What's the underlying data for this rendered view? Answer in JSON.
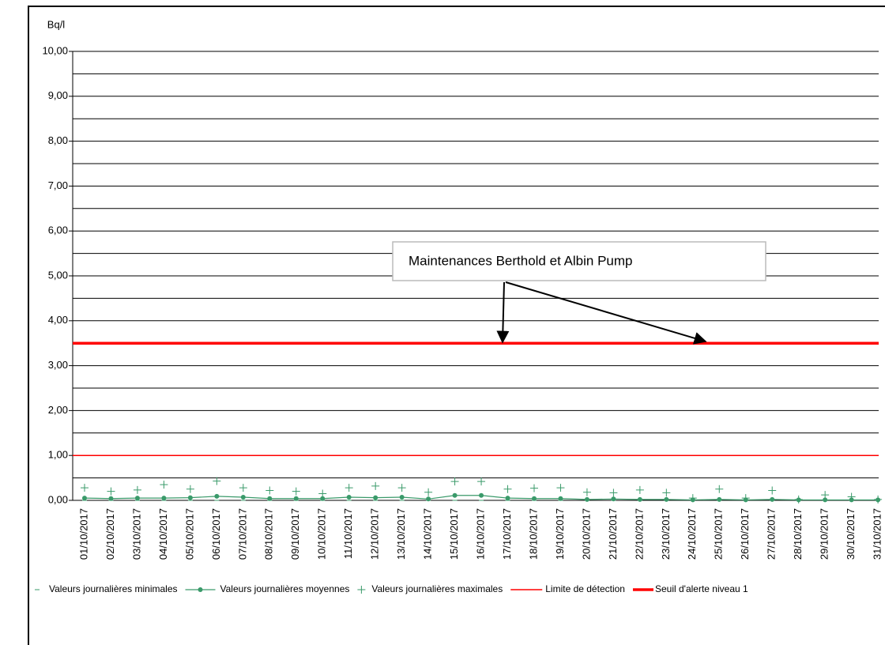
{
  "chart_data": {
    "type": "line",
    "y_label": "Bq/l",
    "annotation": "Maintenances Berthold et Albin Pump",
    "categories": [
      "01/10/2017",
      "02/10/2017",
      "03/10/2017",
      "04/10/2017",
      "05/10/2017",
      "06/10/2017",
      "07/10/2017",
      "08/10/2017",
      "09/10/2017",
      "10/10/2017",
      "11/10/2017",
      "12/10/2017",
      "13/10/2017",
      "14/10/2017",
      "15/10/2017",
      "16/10/2017",
      "17/10/2017",
      "18/10/2017",
      "19/10/2017",
      "20/10/2017",
      "21/10/2017",
      "22/10/2017",
      "23/10/2017",
      "24/10/2017",
      "25/10/2017",
      "26/10/2017",
      "27/10/2017",
      "28/10/2017",
      "29/10/2017",
      "30/10/2017",
      "31/10/2017"
    ],
    "series": [
      {
        "name": "Valeurs journalières minimales",
        "color": "#3a9a6a",
        "style": "dash",
        "values": [
          0,
          0,
          0,
          0,
          0,
          0,
          0,
          0,
          0,
          0,
          0,
          0,
          0,
          0,
          0,
          0,
          0,
          0,
          0,
          0,
          0,
          0,
          0,
          0,
          0,
          0,
          0,
          0,
          0,
          0,
          0
        ]
      },
      {
        "name": "Valeurs journalières moyennes",
        "color": "#3a9a6a",
        "style": "line-dot",
        "values": [
          0.05,
          0.04,
          0.05,
          0.05,
          0.06,
          0.09,
          0.07,
          0.04,
          0.04,
          0.04,
          0.07,
          0.06,
          0.07,
          0.03,
          0.11,
          0.11,
          0.05,
          0.04,
          0.04,
          0.02,
          0.03,
          0.02,
          0.02,
          0.01,
          0.02,
          0.01,
          0.02,
          0.01,
          0.01,
          0.01,
          0.01
        ]
      },
      {
        "name": "Valeurs journalières maximales",
        "color": "#3a9a6a",
        "style": "plus",
        "values": [
          0.28,
          0.2,
          0.23,
          0.35,
          0.25,
          0.43,
          0.28,
          0.22,
          0.2,
          0.15,
          0.28,
          0.32,
          0.28,
          0.18,
          0.42,
          0.42,
          0.25,
          0.27,
          0.28,
          0.18,
          0.17,
          0.23,
          0.17,
          0.05,
          0.25,
          0.05,
          0.22,
          0.02,
          0.12,
          0.08,
          0.02
        ]
      }
    ],
    "reference_lines": [
      {
        "name": "Limite de détection",
        "value": 1,
        "color": "#ff0000",
        "width": 1.5
      },
      {
        "name": "Seuil d'alerte niveau 1",
        "value": 3.5,
        "color": "#ff0000",
        "width": 3.5
      }
    ],
    "ylim": [
      0,
      10
    ],
    "yticks": [
      {
        "value": 0,
        "label": "0,00"
      },
      {
        "value": 1,
        "label": "1,00"
      },
      {
        "value": 2,
        "label": "2,00"
      },
      {
        "value": 3,
        "label": "3,00"
      },
      {
        "value": 4,
        "label": "4,00"
      },
      {
        "value": 5,
        "label": "5,00"
      },
      {
        "value": 6,
        "label": "6,00"
      },
      {
        "value": 7,
        "label": "7,00"
      },
      {
        "value": 8,
        "label": "8,00"
      },
      {
        "value": 9,
        "label": "9,00"
      },
      {
        "value": 10,
        "label": "10,00"
      }
    ],
    "minor_grid_step": 0.5,
    "grid": true
  }
}
